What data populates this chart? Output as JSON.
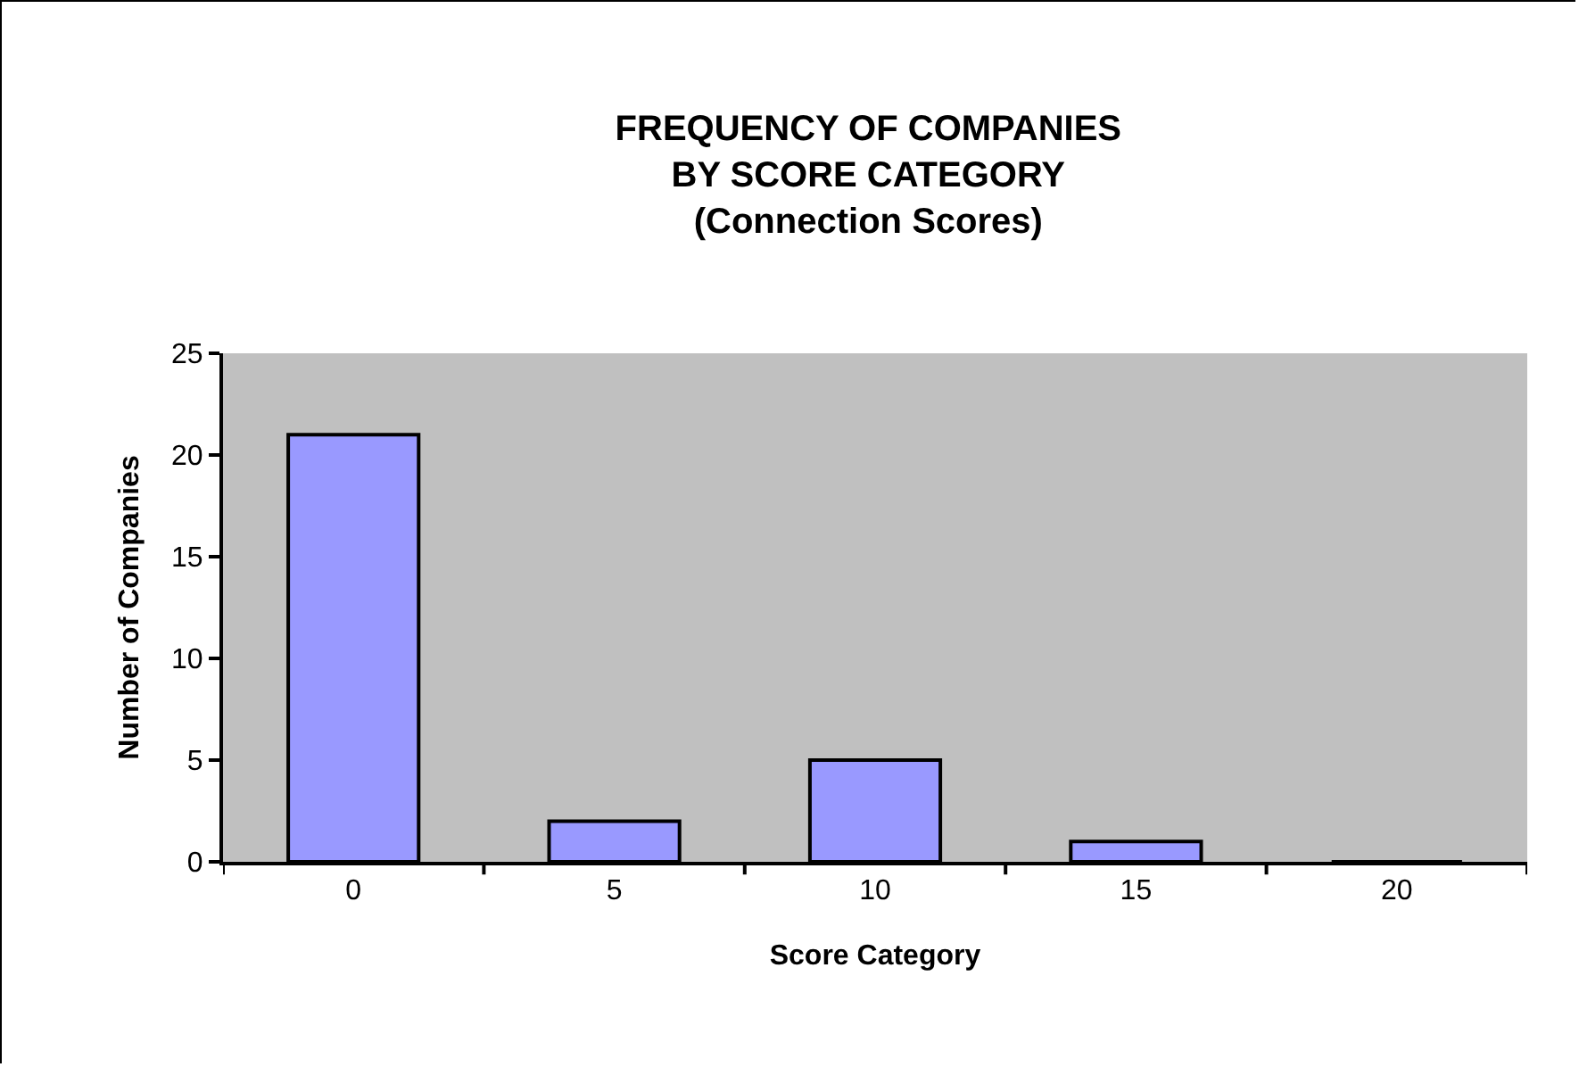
{
  "chart_data": {
    "type": "bar",
    "title": "FREQUENCY OF COMPANIES\nBY SCORE CATEGORY\n(Connection Scores)",
    "xlabel": "Score Category",
    "ylabel": "Number of Companies",
    "categories": [
      "0",
      "5",
      "10",
      "15",
      "20"
    ],
    "values": [
      21,
      2,
      5,
      1,
      0
    ],
    "color": "#9999ff",
    "ylim": [
      0,
      25
    ],
    "yticks": [
      0,
      5,
      10,
      15,
      20,
      25
    ]
  }
}
